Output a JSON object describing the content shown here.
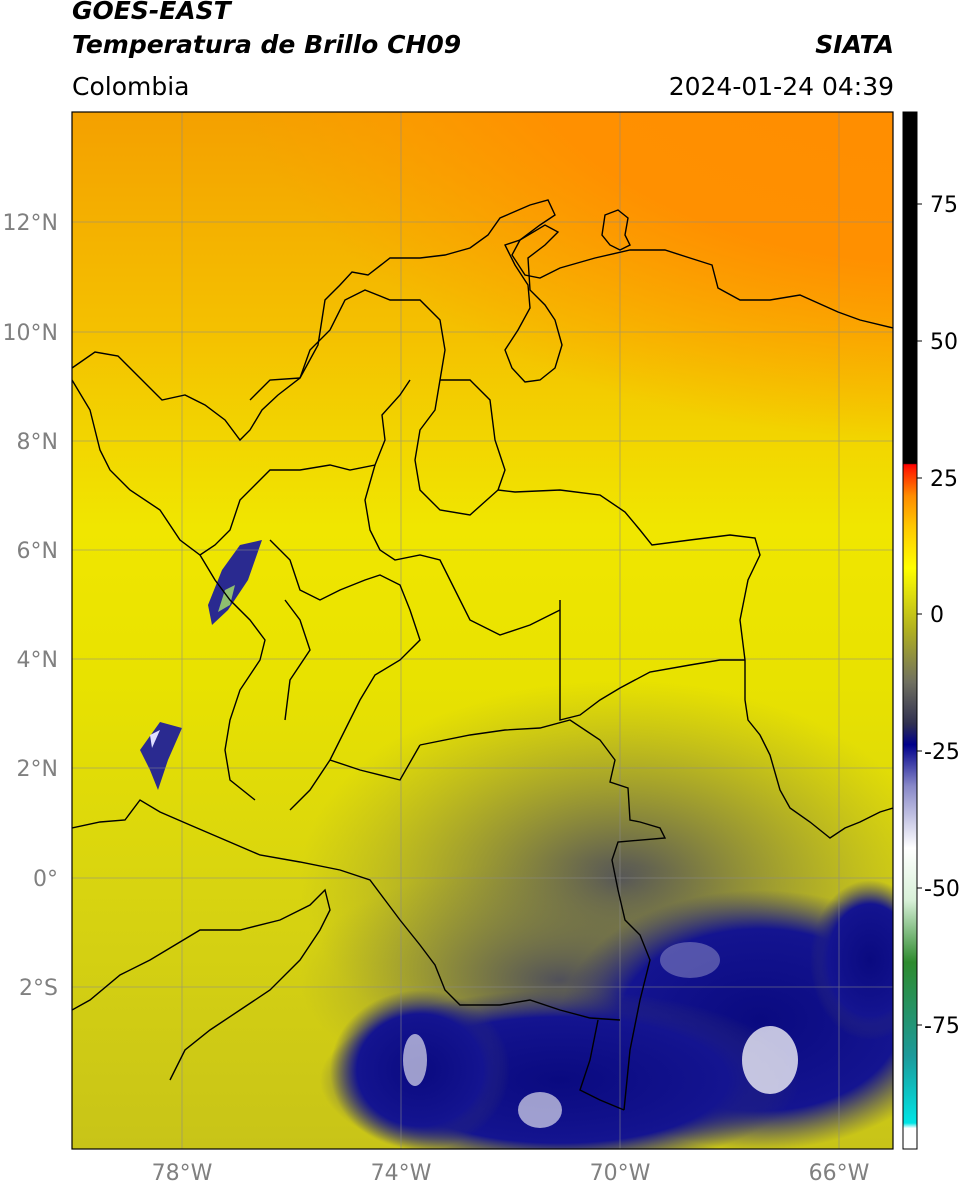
{
  "header": {
    "satellite": "GOES-EAST",
    "product": "Temperatura de Brillo CH09",
    "region": "Colombia",
    "agency": "SIATA",
    "datetime": "2024-01-24 04:39"
  },
  "map": {
    "lon_ticks": [
      "78°W",
      "74°W",
      "70°W",
      "66°W"
    ],
    "lat_ticks": [
      "12°N",
      "10°N",
      "8°N",
      "6°N",
      "4°N",
      "2°N",
      "0°",
      "2°S"
    ],
    "extent": {
      "lon_min": -80,
      "lon_max": -65,
      "lat_min": -5,
      "lat_max": 14
    },
    "grid": true
  },
  "colorbar": {
    "ticks": [
      "75",
      "50",
      "25",
      "0",
      "-25",
      "-50",
      "-75"
    ],
    "range": [
      -100,
      90
    ],
    "colors": {
      "orange": "#ff8c00",
      "yellow": "#ffff00",
      "olive": "#9a9a2a",
      "navy": "#00008b",
      "white": "#ffffff",
      "green": "#2e8b2e",
      "cyan": "#00e5e5",
      "red": "#ff0000",
      "black": "#000000"
    }
  }
}
